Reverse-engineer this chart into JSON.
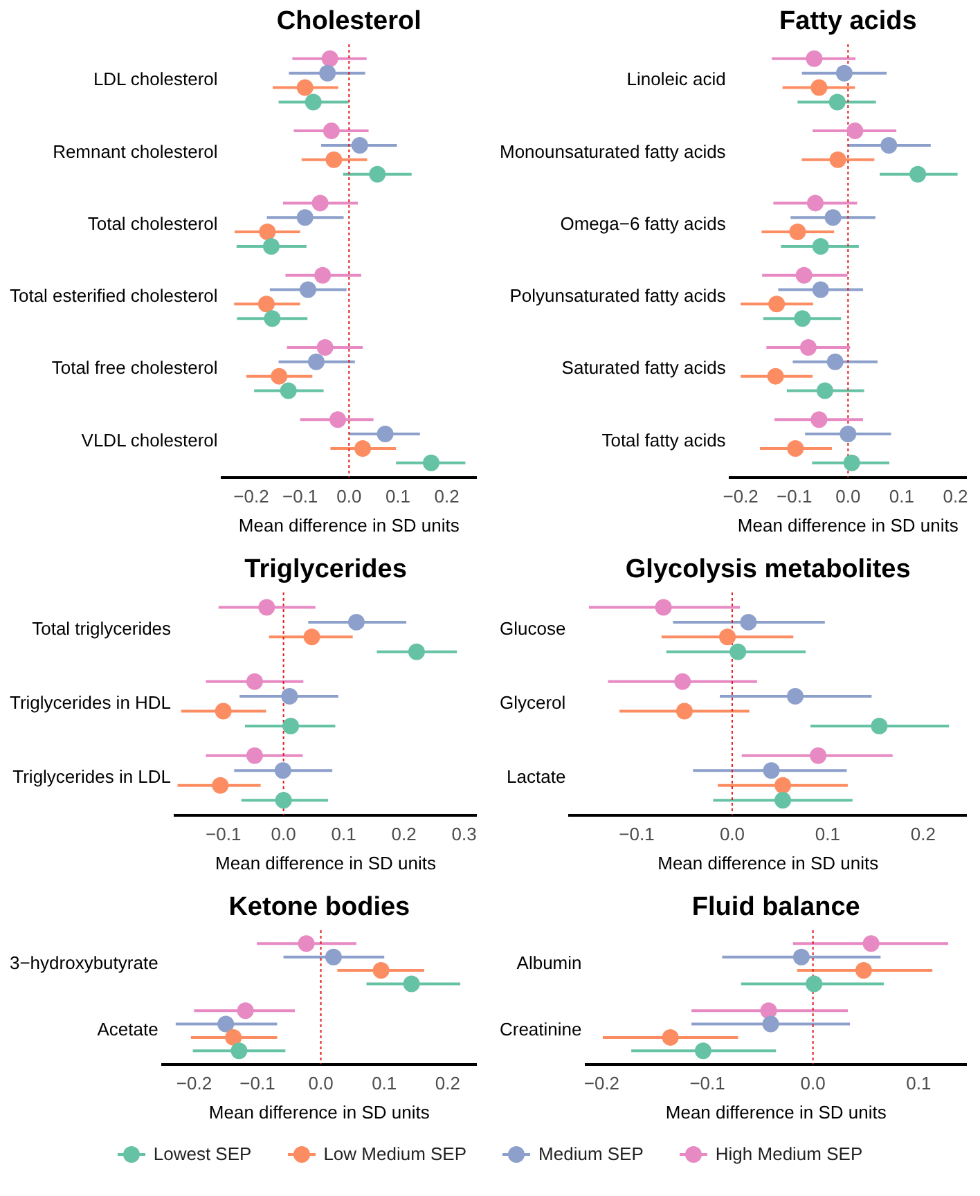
{
  "chart_data": [
    {
      "type": "scatter",
      "orientation": "horizontal",
      "title": "Cholesterol",
      "xlabel": "Mean difference in SD units",
      "categories": [
        "LDL cholesterol",
        "Remnant cholesterol",
        "Total cholesterol",
        "Total esterified cholesterol",
        "Total free cholesterol",
        "VLDL cholesterol"
      ],
      "xlim": [
        -0.26,
        0.26
      ],
      "xticks": [
        {
          "value": -0.2,
          "label": "−0.2"
        },
        {
          "value": -0.1,
          "label": "−0.1"
        },
        {
          "value": 0,
          "label": "0.0"
        },
        0.1,
        0.2
      ],
      "marker": "circle",
      "grid": false,
      "legend": "bottom",
      "ref_lines": [
        {
          "axis": "x",
          "value": 0,
          "color": "#e41a1c",
          "line_style": "dotted"
        }
      ],
      "series": [
        {
          "name": "Lowest SEP",
          "color": "#66c2a5",
          "values": [
            -0.073,
            0.058,
            -0.159,
            -0.157,
            -0.124,
            0.168
          ],
          "errors": [
            [
              -0.144,
              -0.001
            ],
            [
              -0.012,
              0.128
            ],
            [
              -0.23,
              -0.087
            ],
            [
              -0.229,
              -0.085
            ],
            [
              -0.194,
              -0.052
            ],
            [
              0.096,
              0.238
            ]
          ]
        },
        {
          "name": "Low Medium SEP",
          "color": "#fc8d62",
          "values": [
            -0.09,
            -0.031,
            -0.167,
            -0.169,
            -0.143,
            0.028
          ],
          "errors": [
            [
              -0.156,
              -0.022
            ],
            [
              -0.097,
              0.037
            ],
            [
              -0.234,
              -0.1
            ],
            [
              -0.235,
              -0.1
            ],
            [
              -0.21,
              -0.075
            ],
            [
              -0.038,
              0.096
            ]
          ]
        },
        {
          "name": "Medium SEP",
          "color": "#8da0cb",
          "values": [
            -0.044,
            0.022,
            -0.09,
            -0.084,
            -0.067,
            0.074
          ],
          "errors": [
            [
              -0.123,
              0.033
            ],
            [
              -0.057,
              0.098
            ],
            [
              -0.168,
              -0.011
            ],
            [
              -0.162,
              -0.005
            ],
            [
              -0.144,
              0.012
            ],
            [
              0,
              0.145
            ]
          ]
        },
        {
          "name": "High Medium SEP",
          "color": "#e78ac3",
          "values": [
            -0.039,
            -0.036,
            -0.059,
            -0.054,
            -0.049,
            -0.023
          ],
          "errors": [
            [
              -0.116,
              0.036
            ],
            [
              -0.113,
              0.04
            ],
            [
              -0.135,
              0.018
            ],
            [
              -0.13,
              0.025
            ],
            [
              -0.127,
              0.028
            ],
            [
              -0.1,
              0.05
            ]
          ]
        }
      ]
    },
    {
      "type": "scatter",
      "orientation": "horizontal",
      "title": "Fatty acids",
      "xlabel": "Mean difference in SD units",
      "categories": [
        "Linoleic acid",
        "Monounsaturated fatty acids",
        "Omega−6 fatty acids",
        "Polyunsaturated fatty acids",
        "Saturated fatty acids",
        "Total fatty acids"
      ],
      "xlim": [
        -0.22,
        0.22
      ],
      "xticks": [
        {
          "value": -0.2,
          "label": "−0.2"
        },
        {
          "value": -0.1,
          "label": "−0.1"
        },
        {
          "value": 0,
          "label": "0.0"
        },
        0.1,
        0.2
      ],
      "marker": "circle",
      "grid": false,
      "ref_lines": [
        {
          "axis": "x",
          "value": 0,
          "color": "#e41a1c",
          "line_style": "dotted"
        }
      ],
      "series": [
        {
          "color": "#66c2a5",
          "values": [
            -0.02,
            0.13,
            -0.051,
            -0.085,
            -0.043,
            0.007
          ],
          "errors": [
            [
              -0.094,
              0.052
            ],
            [
              0.059,
              0.204
            ],
            [
              -0.125,
              0.02
            ],
            [
              -0.158,
              -0.013
            ],
            [
              -0.114,
              0.03
            ],
            [
              -0.067,
              0.077
            ]
          ]
        },
        {
          "color": "#fc8d62",
          "values": [
            -0.054,
            -0.019,
            -0.094,
            -0.133,
            -0.135,
            -0.098
          ],
          "errors": [
            [
              -0.122,
              0.013
            ],
            [
              -0.086,
              0.049
            ],
            [
              -0.161,
              -0.026
            ],
            [
              -0.2,
              -0.065
            ],
            [
              -0.2,
              -0.066
            ],
            [
              -0.164,
              -0.03
            ]
          ]
        },
        {
          "color": "#8da0cb",
          "values": [
            -0.007,
            0.076,
            -0.028,
            -0.051,
            -0.024,
            0
          ],
          "errors": [
            [
              -0.086,
              0.072
            ],
            [
              0,
              0.154
            ],
            [
              -0.107,
              0.051
            ],
            [
              -0.13,
              0.028
            ],
            [
              -0.103,
              0.055
            ],
            [
              -0.08,
              0.08
            ]
          ]
        },
        {
          "color": "#e78ac3",
          "values": [
            -0.063,
            0.013,
            -0.061,
            -0.082,
            -0.074,
            -0.054
          ],
          "errors": [
            [
              -0.142,
              0.014
            ],
            [
              -0.066,
              0.09
            ],
            [
              -0.139,
              0.017
            ],
            [
              -0.16,
              -0.001
            ],
            [
              -0.152,
              0.004
            ],
            [
              -0.137,
              0.028
            ]
          ]
        }
      ]
    },
    {
      "type": "scatter",
      "orientation": "horizontal",
      "title": "Triglycerides",
      "xlabel": "Mean difference in SD units",
      "categories": [
        "Total triglycerides",
        "Triglycerides in HDL",
        "Triglycerides in LDL"
      ],
      "xlim": [
        -0.18,
        0.32
      ],
      "xticks": [
        {
          "value": -0.1,
          "label": "−0.1"
        },
        {
          "value": 0,
          "label": "0.0"
        },
        0.1,
        0.2,
        0.3
      ],
      "marker": "circle",
      "grid": false,
      "ref_lines": [
        {
          "axis": "x",
          "value": 0,
          "color": "#e41a1c",
          "line_style": "dotted"
        }
      ],
      "series": [
        {
          "color": "#66c2a5",
          "values": [
            0.221,
            0.012,
            0
          ],
          "errors": [
            [
              0.155,
              0.288
            ],
            [
              -0.064,
              0.086
            ],
            [
              -0.07,
              0.074
            ]
          ]
        },
        {
          "color": "#fc8d62",
          "values": [
            0.047,
            -0.1,
            -0.105
          ],
          "errors": [
            [
              -0.024,
              0.115
            ],
            [
              -0.17,
              -0.029
            ],
            [
              -0.176,
              -0.038
            ]
          ]
        },
        {
          "color": "#8da0cb",
          "values": [
            0.121,
            0.01,
            -0.001
          ],
          "errors": [
            [
              0.041,
              0.204
            ],
            [
              -0.073,
              0.091
            ],
            [
              -0.082,
              0.081
            ]
          ]
        },
        {
          "color": "#e78ac3",
          "values": [
            -0.028,
            -0.048,
            -0.048
          ],
          "errors": [
            [
              -0.108,
              0.053
            ],
            [
              -0.129,
              0.033
            ],
            [
              -0.129,
              0.032
            ]
          ]
        }
      ]
    },
    {
      "type": "scatter",
      "orientation": "horizontal",
      "title": "Glycolysis metabolites",
      "xlabel": "Mean difference in SD units",
      "categories": [
        "Glucose",
        "Glycerol",
        "Lactate"
      ],
      "xlim": [
        -0.17,
        0.245
      ],
      "xticks": [
        {
          "value": -0.1,
          "label": "−0.1"
        },
        {
          "value": 0,
          "label": "0.0"
        },
        0.1,
        0.2
      ],
      "marker": "circle",
      "grid": false,
      "ref_lines": [
        {
          "axis": "x",
          "value": 0,
          "color": "#e41a1c",
          "line_style": "dotted"
        }
      ],
      "series": [
        {
          "color": "#66c2a5",
          "values": [
            0.006,
            0.154,
            0.053
          ],
          "errors": [
            [
              -0.069,
              0.077
            ],
            [
              0.082,
              0.227
            ],
            [
              -0.02,
              0.126
            ]
          ]
        },
        {
          "color": "#fc8d62",
          "values": [
            -0.005,
            -0.05,
            0.053
          ],
          "errors": [
            [
              -0.074,
              0.064
            ],
            [
              -0.118,
              0.018
            ],
            [
              -0.015,
              0.121
            ]
          ]
        },
        {
          "color": "#8da0cb",
          "values": [
            0.017,
            0.066,
            0.041
          ],
          "errors": [
            [
              -0.062,
              0.097
            ],
            [
              -0.013,
              0.146
            ],
            [
              -0.041,
              0.12
            ]
          ]
        },
        {
          "color": "#e78ac3",
          "values": [
            -0.072,
            -0.052,
            0.09
          ],
          "errors": [
            [
              -0.15,
              0.008
            ],
            [
              -0.13,
              0.026
            ],
            [
              0.01,
              0.168
            ]
          ]
        }
      ]
    },
    {
      "type": "scatter",
      "orientation": "horizontal",
      "title": "Ketone bodies",
      "xlabel": "Mean difference in SD units",
      "categories": [
        "3−hydroxybutyrate",
        "Acetate"
      ],
      "xlim": [
        -0.25,
        0.245
      ],
      "xticks": [
        {
          "value": -0.2,
          "label": "−0.2"
        },
        {
          "value": -0.1,
          "label": "−0.1"
        },
        {
          "value": 0,
          "label": "0.0"
        },
        0.1,
        0.2
      ],
      "marker": "circle",
      "grid": false,
      "ref_lines": [
        {
          "axis": "x",
          "value": 0,
          "color": "#e41a1c",
          "line_style": "dotted"
        }
      ],
      "series": [
        {
          "color": "#66c2a5",
          "values": [
            0.143,
            -0.129
          ],
          "errors": [
            [
              0.072,
              0.22
            ],
            [
              -0.202,
              -0.056
            ]
          ]
        },
        {
          "color": "#fc8d62",
          "values": [
            0.095,
            -0.138
          ],
          "errors": [
            [
              0.026,
              0.163
            ],
            [
              -0.205,
              -0.069
            ]
          ]
        },
        {
          "color": "#8da0cb",
          "values": [
            0.02,
            -0.15
          ],
          "errors": [
            [
              -0.059,
              0.1
            ],
            [
              -0.229,
              -0.069
            ]
          ]
        },
        {
          "color": "#e78ac3",
          "values": [
            -0.023,
            -0.119
          ],
          "errors": [
            [
              -0.101,
              0.056
            ],
            [
              -0.2,
              -0.041
            ]
          ]
        }
      ]
    },
    {
      "type": "scatter",
      "orientation": "horizontal",
      "title": "Fluid balance",
      "xlabel": "Mean difference in SD units",
      "categories": [
        "Albumin",
        "Creatinine"
      ],
      "xlim": [
        -0.215,
        0.145
      ],
      "xticks": [
        {
          "value": -0.2,
          "label": "−0.2"
        },
        {
          "value": -0.1,
          "label": "−0.1"
        },
        {
          "value": 0,
          "label": "0.0"
        },
        0.1
      ],
      "marker": "circle",
      "grid": false,
      "ref_lines": [
        {
          "axis": "x",
          "value": 0,
          "color": "#e41a1c",
          "line_style": "dotted"
        }
      ],
      "series": [
        {
          "color": "#66c2a5",
          "values": [
            0.001,
            -0.104
          ],
          "errors": [
            [
              -0.068,
              0.067
            ],
            [
              -0.172,
              -0.035
            ]
          ]
        },
        {
          "color": "#fc8d62",
          "values": [
            0.048,
            -0.135
          ],
          "errors": [
            [
              -0.015,
              0.113
            ],
            [
              -0.199,
              -0.071
            ]
          ]
        },
        {
          "color": "#8da0cb",
          "values": [
            -0.011,
            -0.04
          ],
          "errors": [
            [
              -0.086,
              0.064
            ],
            [
              -0.115,
              0.035
            ]
          ]
        },
        {
          "color": "#e78ac3",
          "values": [
            0.055,
            -0.042
          ],
          "errors": [
            [
              -0.019,
              0.128
            ],
            [
              -0.115,
              0.033
            ]
          ]
        }
      ]
    }
  ]
}
